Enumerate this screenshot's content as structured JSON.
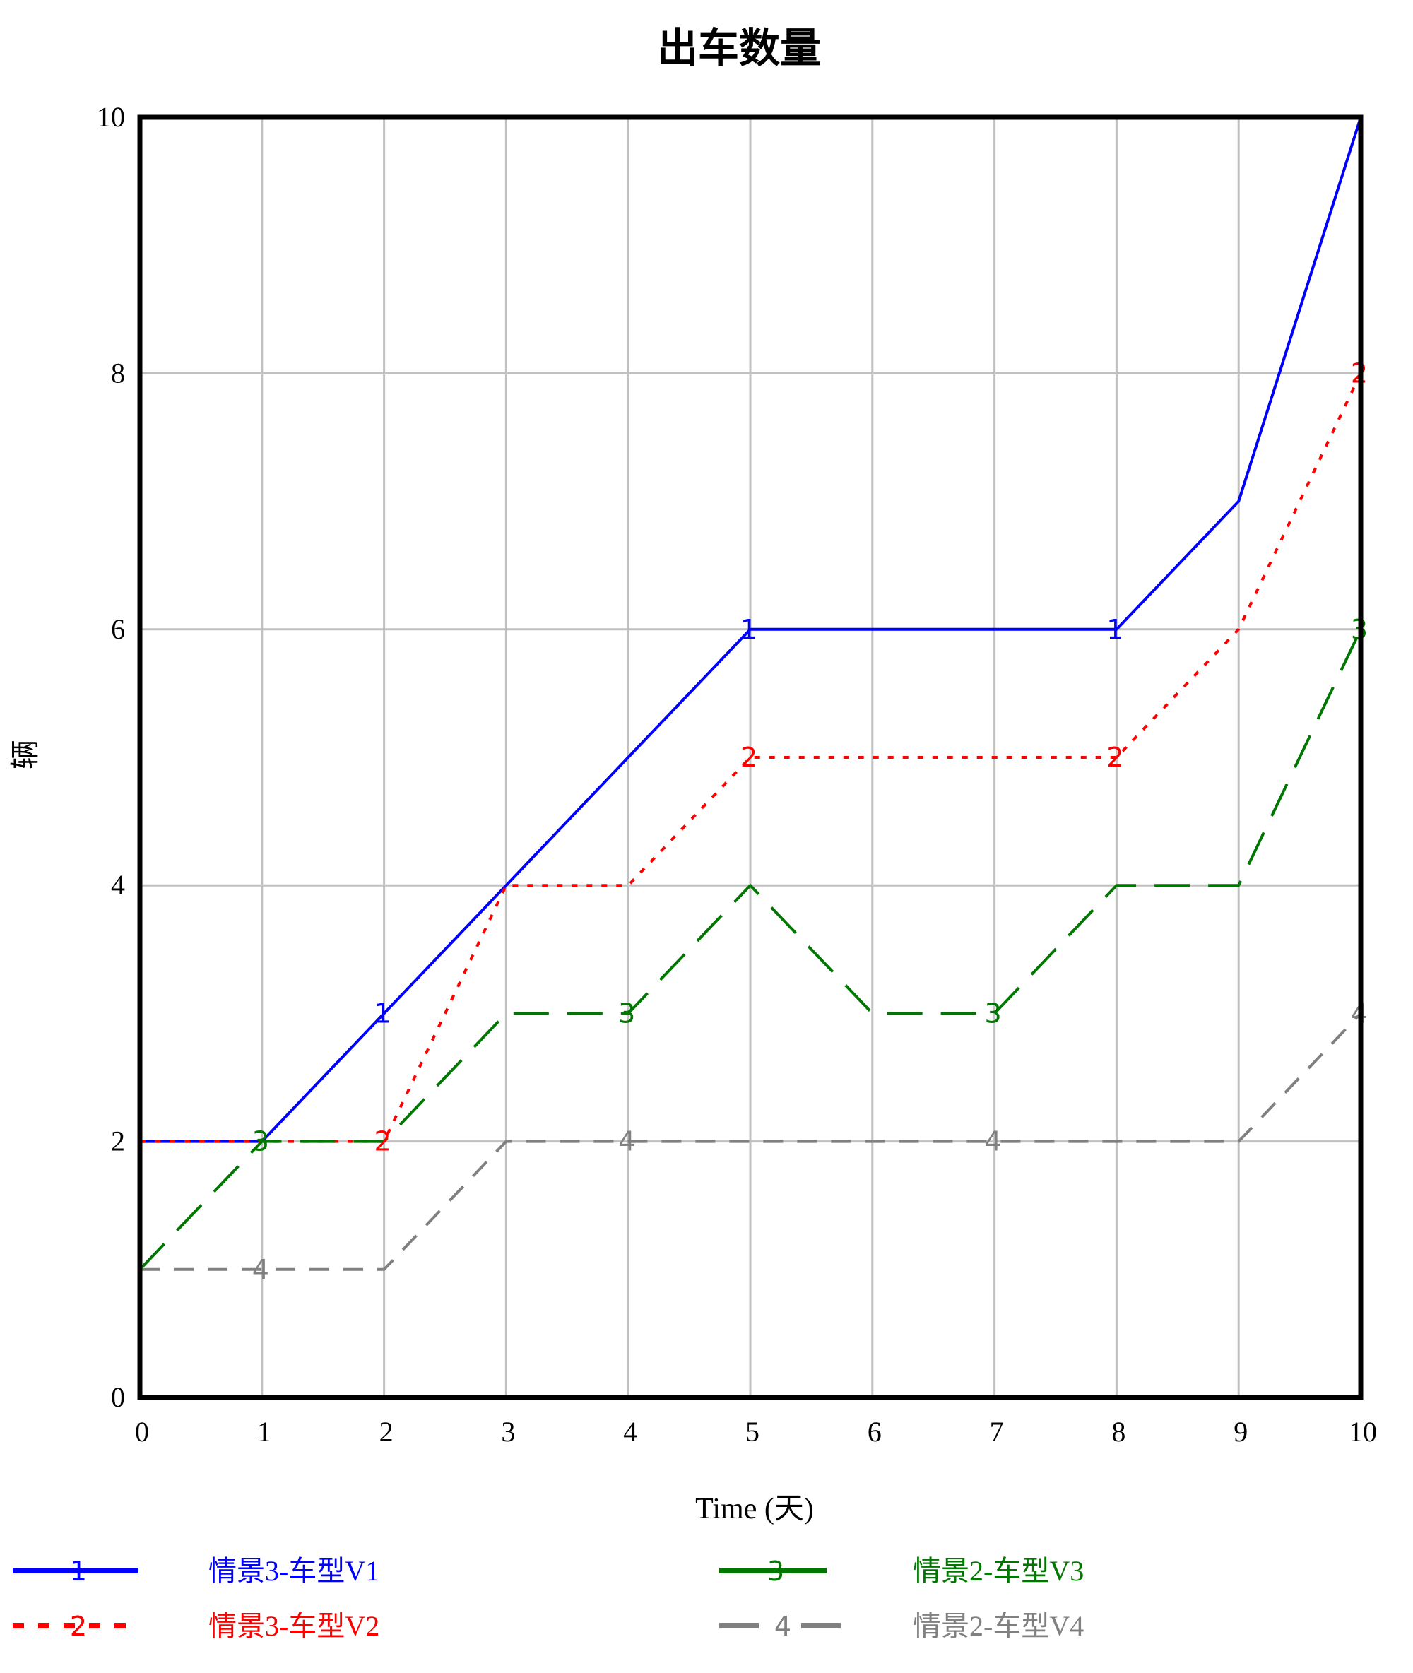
{
  "chart_data": {
    "type": "line",
    "title": "出车数量",
    "xlabel": "Time (天)",
    "ylabel": "辆",
    "xlim": [
      0,
      10
    ],
    "ylim": [
      0,
      10
    ],
    "x_ticks": [
      "0",
      "1",
      "2",
      "3",
      "4",
      "5",
      "6",
      "7",
      "8",
      "9",
      "10"
    ],
    "y_ticks": [
      "0",
      "2",
      "4",
      "6",
      "8",
      "10"
    ],
    "grid": true,
    "legend_position": "bottom",
    "x": [
      0,
      1,
      2,
      3,
      4,
      5,
      6,
      7,
      8,
      9,
      10
    ],
    "series": [
      {
        "name": "情景3-车型V1",
        "marker": "1",
        "color": "#0000ff",
        "style": "solid",
        "values": [
          2,
          2,
          3,
          4,
          5,
          6,
          6,
          6,
          6,
          7,
          10
        ]
      },
      {
        "name": "情景3-车型V2",
        "marker": "2",
        "color": "#ff0000",
        "style": "dotted",
        "values": [
          2,
          2,
          2,
          4,
          4,
          5,
          5,
          5,
          5,
          6,
          8
        ]
      },
      {
        "name": "情景2-车型V3",
        "marker": "3",
        "color": "#007700",
        "style": "longdash",
        "values": [
          1,
          2,
          2,
          3,
          3,
          4,
          3,
          3,
          4,
          4,
          6
        ]
      },
      {
        "name": "情景2-车型V4",
        "marker": "4",
        "color": "#808080",
        "style": "dash",
        "values": [
          1,
          1,
          1,
          2,
          2,
          2,
          2,
          2,
          2,
          2,
          3
        ]
      }
    ]
  }
}
